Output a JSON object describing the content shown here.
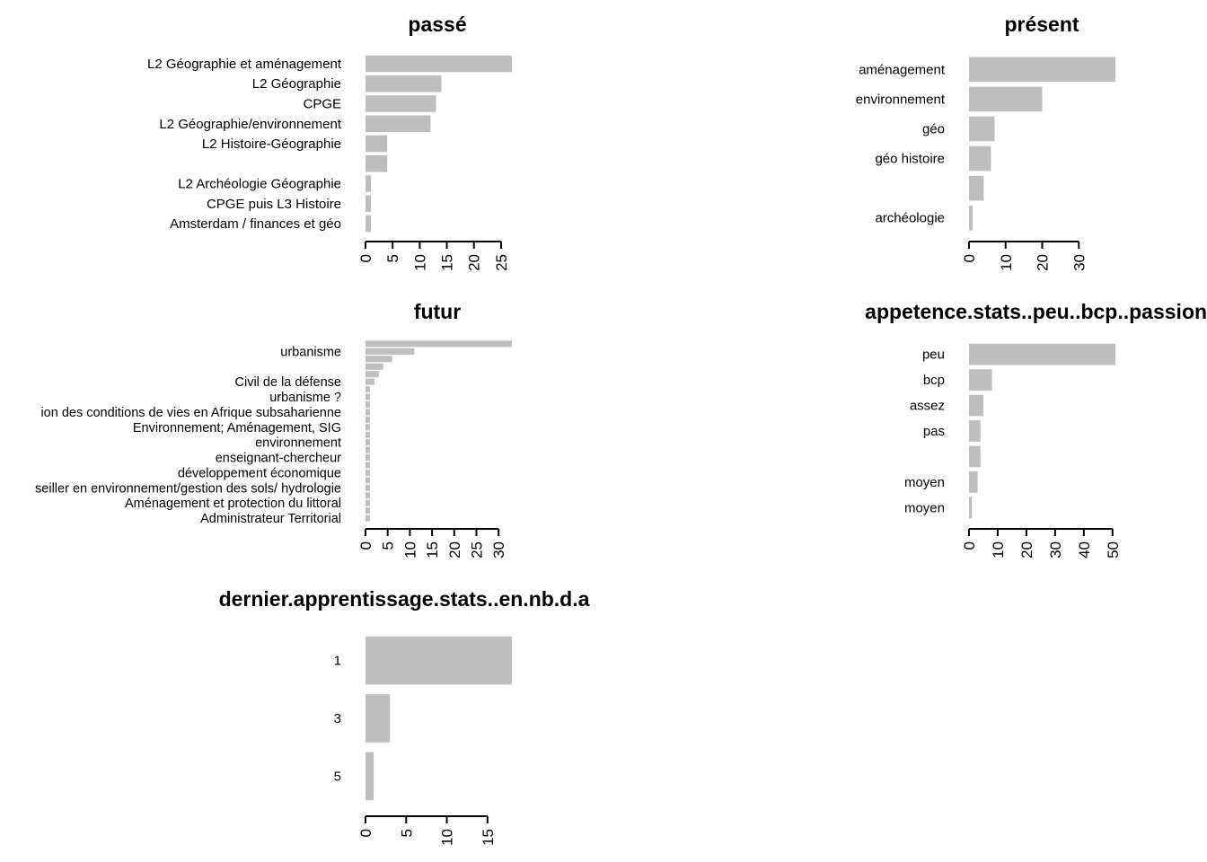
{
  "chart_data": [
    {
      "type": "bar",
      "orientation": "horizontal",
      "title": "passé",
      "categories": [
        "L2 Géographie et aménagement",
        "L2 Géographie",
        "CPGE",
        "L2 Géographie/environnement",
        "L2 Histoire-Géographie",
        "",
        "L2 Archéologie Géographie",
        "CPGE  puis L3 Histoire",
        "Amsterdam / finances et géo"
      ],
      "values": [
        27,
        14,
        13,
        12,
        4,
        4,
        1,
        1,
        1
      ],
      "xlim": [
        0,
        27
      ],
      "ticks": [
        0,
        5,
        10,
        15,
        20,
        25
      ],
      "tick_labels": [
        "0",
        "5",
        "10",
        "15",
        "20",
        "25"
      ],
      "bar_color": "#bebebe"
    },
    {
      "type": "bar",
      "orientation": "horizontal",
      "title": "présent",
      "categories": [
        "aménagement",
        "environnement",
        "géo",
        "géo histoire",
        "",
        "archéologie"
      ],
      "values": [
        40,
        20,
        7,
        6,
        4,
        1
      ],
      "xlim": [
        0,
        40
      ],
      "ticks": [
        0,
        10,
        20,
        30
      ],
      "tick_labels": [
        "0",
        "10",
        "20",
        "30"
      ],
      "bar_color": "#bebebe"
    },
    {
      "type": "bar",
      "orientation": "horizontal",
      "title": "futur",
      "categories": [
        "",
        "urbanisme",
        "",
        "",
        "",
        "Civil de la défense ",
        "",
        "urbanisme ?",
        "",
        "ion des conditions de vies en Afrique subsaharienne",
        "",
        "Environnement; Aménagement, SIG",
        "",
        "environnement",
        "",
        "enseignant-chercheur",
        "",
        "développement économique ",
        "",
        "seiller en environnement/gestion des sols/ hydrologie",
        "",
        "Aménagement et protection du littoral",
        "",
        "Administrateur Territorial"
      ],
      "values": [
        33,
        11,
        6,
        4,
        3,
        2,
        1,
        1,
        1,
        1,
        1,
        1,
        1,
        1,
        1,
        1,
        1,
        1,
        1,
        1,
        1,
        1,
        1,
        1
      ],
      "xlim": [
        0,
        33
      ],
      "ticks": [
        0,
        5,
        10,
        15,
        20,
        25,
        30
      ],
      "tick_labels": [
        "0",
        "5",
        "10",
        "15",
        "20",
        "25",
        "30"
      ],
      "bar_color": "#bebebe"
    },
    {
      "type": "bar",
      "orientation": "horizontal",
      "title": "appetence.stats..peu..bcp..passion..",
      "categories": [
        "peu",
        "bcp",
        "assez",
        "pas",
        "",
        "moyen",
        "moyen "
      ],
      "values": [
        51,
        8,
        5,
        4,
        4,
        3,
        1
      ],
      "xlim": [
        0,
        51
      ],
      "ticks": [
        0,
        10,
        20,
        30,
        40,
        50
      ],
      "tick_labels": [
        "0",
        "10",
        "20",
        "30",
        "40",
        "50"
      ],
      "bar_color": "#bebebe"
    },
    {
      "type": "bar",
      "orientation": "horizontal",
      "title": "dernier.apprentissage.stats..en.nb.d.a",
      "categories": [
        "1",
        "3",
        "5"
      ],
      "values": [
        18,
        3,
        1
      ],
      "xlim": [
        0,
        18
      ],
      "ticks": [
        0,
        5,
        10,
        15
      ],
      "tick_labels": [
        "0",
        "5",
        "10",
        "15"
      ],
      "bar_color": "#bebebe"
    }
  ]
}
